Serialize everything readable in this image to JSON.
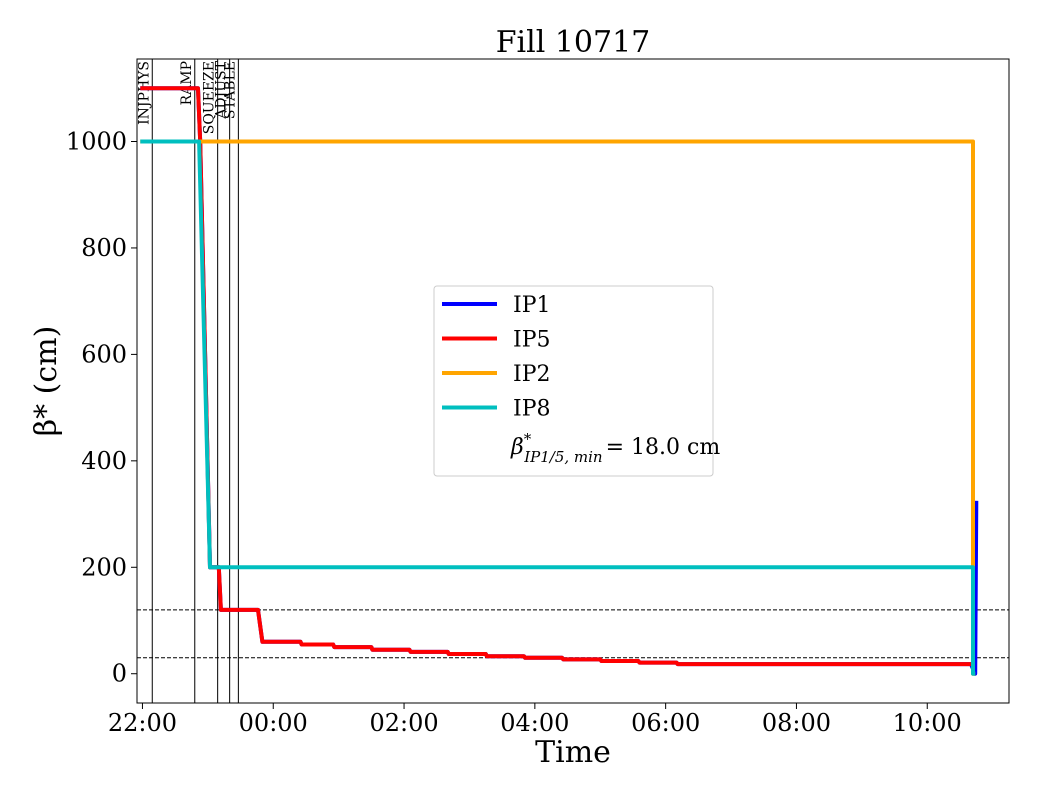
{
  "chart_data": {
    "type": "line",
    "title": "Fill 10717",
    "xlabel": "Time",
    "ylabel": "β* (cm)",
    "xlim": [
      "21:55",
      "11:15"
    ],
    "ylim": [
      -55,
      1155
    ],
    "x_ticks": [
      "22:00",
      "00:00",
      "02:00",
      "04:00",
      "06:00",
      "08:00",
      "10:00"
    ],
    "y_ticks": [
      0,
      200,
      400,
      600,
      800,
      1000
    ],
    "grid": false,
    "legend_position": "center",
    "phases": [
      {
        "label": "INJPHYS",
        "time": "22:09"
      },
      {
        "label": "RAMP",
        "time": "22:48"
      },
      {
        "label": "SQUEEZE",
        "time": "23:09"
      },
      {
        "label": "ADJUST",
        "time": "23:20"
      },
      {
        "label": "STABLE",
        "time": "23:28"
      }
    ],
    "reference_lines": [
      120,
      30
    ],
    "series": [
      {
        "name": "IP1",
        "color": "#0000ff",
        "points": [
          [
            "21:58",
            1100
          ],
          [
            "22:51",
            1100
          ],
          [
            "22:53",
            1000
          ],
          [
            "23:02",
            200
          ],
          [
            "23:10",
            200
          ],
          [
            "23:12",
            120
          ],
          [
            "23:46",
            120
          ],
          [
            "23:50",
            60
          ],
          [
            "00:25",
            60
          ],
          [
            "00:26",
            55
          ],
          [
            "00:55",
            55
          ],
          [
            "00:56",
            50
          ],
          [
            "01:30",
            50
          ],
          [
            "01:31",
            45
          ],
          [
            "02:05",
            45
          ],
          [
            "02:06",
            41
          ],
          [
            "02:40",
            41
          ],
          [
            "02:41",
            37
          ],
          [
            "03:15",
            37
          ],
          [
            "03:16",
            33
          ],
          [
            "03:50",
            33
          ],
          [
            "03:51",
            30
          ],
          [
            "04:25",
            30
          ],
          [
            "04:26",
            27
          ],
          [
            "05:00",
            27
          ],
          [
            "05:01",
            24
          ],
          [
            "05:35",
            24
          ],
          [
            "05:36",
            21
          ],
          [
            "06:10",
            21
          ],
          [
            "06:11",
            18
          ],
          [
            "10:40",
            18
          ],
          [
            "10:44",
            0
          ],
          [
            "10:45",
            325
          ]
        ]
      },
      {
        "name": "IP5",
        "color": "#ff0000",
        "points": [
          [
            "21:58",
            1100
          ],
          [
            "22:51",
            1100
          ],
          [
            "22:53",
            1000
          ],
          [
            "23:02",
            200
          ],
          [
            "23:10",
            200
          ],
          [
            "23:12",
            120
          ],
          [
            "23:46",
            120
          ],
          [
            "23:50",
            60
          ],
          [
            "00:25",
            60
          ],
          [
            "00:26",
            55
          ],
          [
            "00:55",
            55
          ],
          [
            "00:56",
            50
          ],
          [
            "01:30",
            50
          ],
          [
            "01:31",
            45
          ],
          [
            "02:05",
            45
          ],
          [
            "02:06",
            41
          ],
          [
            "02:40",
            41
          ],
          [
            "02:41",
            37
          ],
          [
            "03:15",
            37
          ],
          [
            "03:16",
            33
          ],
          [
            "03:50",
            33
          ],
          [
            "03:51",
            30
          ],
          [
            "04:25",
            30
          ],
          [
            "04:26",
            27
          ],
          [
            "05:00",
            27
          ],
          [
            "05:01",
            24
          ],
          [
            "05:35",
            24
          ],
          [
            "05:36",
            21
          ],
          [
            "06:10",
            21
          ],
          [
            "06:11",
            18
          ],
          [
            "10:40",
            18
          ]
        ]
      },
      {
        "name": "IP2",
        "color": "#ffa500",
        "points": [
          [
            "21:58",
            1000
          ],
          [
            "10:42",
            1000
          ],
          [
            "10:42",
            0
          ],
          [
            "10:44",
            0
          ]
        ]
      },
      {
        "name": "IP8",
        "color": "#00bfbf",
        "points": [
          [
            "21:58",
            1000
          ],
          [
            "22:52",
            1000
          ],
          [
            "23:02",
            200
          ],
          [
            "10:42",
            200
          ],
          [
            "10:42",
            0
          ],
          [
            "10:44",
            0
          ]
        ]
      }
    ],
    "legend": {
      "entries": [
        "IP1",
        "IP5",
        "IP2",
        "IP8"
      ],
      "note_prefix": "β",
      "note_sup": "*",
      "note_sub": "IP1/5, min",
      "note_value": "= 18.0 cm"
    }
  }
}
